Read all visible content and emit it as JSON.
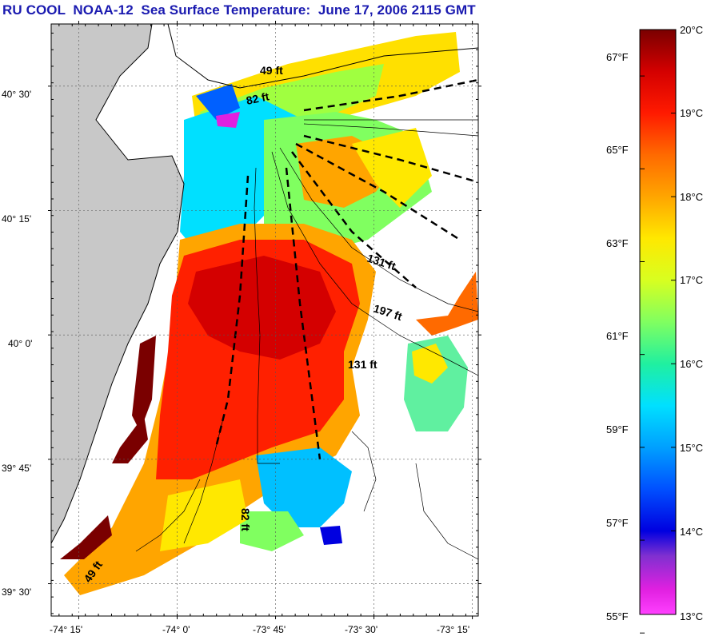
{
  "title": "RU COOL  NOAA-12  Sea Surface Temperature:  June 17, 2006 2115 GMT",
  "map": {
    "lat_labels": [
      "40° 30'",
      "40° 15'",
      "40° 0'",
      "39° 45'",
      "39° 30'"
    ],
    "lon_labels": [
      "-74° 15'",
      "-74° 0'",
      "-73° 45'",
      "-73° 30'",
      "-73° 15'"
    ],
    "lat_values": [
      40.5,
      40.25,
      40.0,
      39.75,
      39.5
    ],
    "lon_values": [
      -74.25,
      -74.0,
      -73.75,
      -73.5,
      -73.25
    ],
    "isobath_labels": [
      "49 ft",
      "82 ft",
      "131 ft",
      "197 ft",
      "131 ft",
      "82 ft",
      "49 ft"
    ],
    "colors": {
      "land": "#c8c8c8",
      "water_no_data": "#ffffff",
      "coastline": "#000000",
      "title": "#1a1ab0"
    }
  },
  "colorbar": {
    "celsius_labels": [
      "20°C",
      "19°C",
      "18°C",
      "17°C",
      "16°C",
      "15°C",
      "14°C",
      "13°C"
    ],
    "fahrenheit_labels": [
      "67°F",
      "65°F",
      "63°F",
      "61°F",
      "59°F",
      "57°F",
      "55°F"
    ],
    "celsius_values": [
      20,
      19,
      18,
      17,
      16,
      15,
      14,
      13
    ],
    "fahrenheit_values": [
      67,
      65,
      63,
      61,
      59,
      57,
      55
    ],
    "range_c": [
      13,
      20
    ],
    "stops": [
      {
        "c": 20.0,
        "color": "#7a0000"
      },
      {
        "c": 19.5,
        "color": "#d40000"
      },
      {
        "c": 19.0,
        "color": "#ff1a00"
      },
      {
        "c": 18.5,
        "color": "#ff6a00"
      },
      {
        "c": 18.0,
        "color": "#ffa500"
      },
      {
        "c": 17.5,
        "color": "#ffe800"
      },
      {
        "c": 17.0,
        "color": "#d8ff20"
      },
      {
        "c": 16.5,
        "color": "#80ff60"
      },
      {
        "c": 16.0,
        "color": "#20f0a0"
      },
      {
        "c": 15.5,
        "color": "#00e0ff"
      },
      {
        "c": 15.0,
        "color": "#00a0ff"
      },
      {
        "c": 14.5,
        "color": "#0050ff"
      },
      {
        "c": 14.0,
        "color": "#0000e0"
      },
      {
        "c": 13.7,
        "color": "#8030d0"
      },
      {
        "c": 13.3,
        "color": "#e020e0"
      },
      {
        "c": 13.0,
        "color": "#ff40ff"
      }
    ]
  }
}
